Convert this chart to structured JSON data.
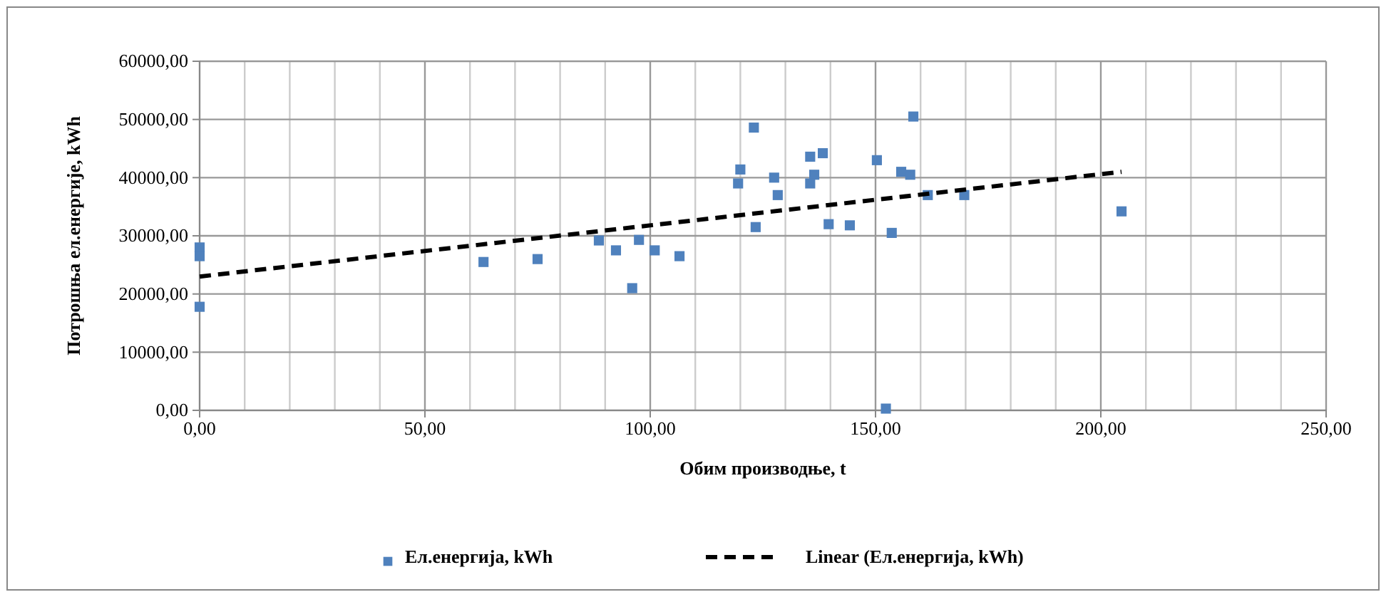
{
  "chart_data": {
    "type": "scatter",
    "xlabel": "Обим производње, t",
    "ylabel": "Потрошња ел.енергије, kWh",
    "xlim": [
      0,
      250
    ],
    "ylim": [
      0,
      60000
    ],
    "xticks": [
      {
        "value": 0,
        "label": "0,00"
      },
      {
        "value": 10,
        "label": null
      },
      {
        "value": 20,
        "label": null
      },
      {
        "value": 30,
        "label": null
      },
      {
        "value": 40,
        "label": null
      },
      {
        "value": 50,
        "label": "50,00"
      },
      {
        "value": 60,
        "label": null
      },
      {
        "value": 70,
        "label": null
      },
      {
        "value": 80,
        "label": null
      },
      {
        "value": 90,
        "label": null
      },
      {
        "value": 100,
        "label": "100,00"
      },
      {
        "value": 110,
        "label": null
      },
      {
        "value": 120,
        "label": null
      },
      {
        "value": 130,
        "label": null
      },
      {
        "value": 140,
        "label": null
      },
      {
        "value": 150,
        "label": "150,00"
      },
      {
        "value": 160,
        "label": null
      },
      {
        "value": 170,
        "label": null
      },
      {
        "value": 180,
        "label": null
      },
      {
        "value": 190,
        "label": null
      },
      {
        "value": 200,
        "label": "200,00"
      },
      {
        "value": 210,
        "label": null
      },
      {
        "value": 220,
        "label": null
      },
      {
        "value": 230,
        "label": null
      },
      {
        "value": 240,
        "label": null
      },
      {
        "value": 250,
        "label": "250,00"
      }
    ],
    "yticks": [
      {
        "value": 0,
        "label": "0,00"
      },
      {
        "value": 10000,
        "label": "10000,00"
      },
      {
        "value": 20000,
        "label": "20000,00"
      },
      {
        "value": 30000,
        "label": "30000,00"
      },
      {
        "value": 40000,
        "label": "40000,00"
      },
      {
        "value": 50000,
        "label": "50000,00"
      },
      {
        "value": 60000,
        "label": "60000,00"
      }
    ],
    "grid": true,
    "legend": "bottom",
    "series": [
      {
        "name": "Ел.енергија, kWh",
        "marker": "square",
        "color": "#4f81bd",
        "x": [
          0,
          0,
          0,
          63,
          75,
          88.6,
          92.4,
          97.5,
          96,
          101,
          106.5,
          123,
          120,
          119.5,
          127.5,
          128.3,
          123.4,
          135.5,
          138.3,
          136.4,
          135.5,
          139.6,
          144.3,
          150.3,
          153.6,
          152.3,
          158.4,
          155.7,
          157.7,
          161.6,
          169.7,
          204.6
        ],
        "values": [
          28000,
          26500,
          17800,
          25500,
          26000,
          29200,
          27500,
          29300,
          21000,
          27500,
          26500,
          48600,
          41400,
          39000,
          40000,
          37000,
          31500,
          43600,
          44200,
          40500,
          39000,
          32000,
          31800,
          43000,
          30500,
          300,
          50500,
          41000,
          40500,
          37000,
          37000,
          34200
        ]
      },
      {
        "name": "Linear (Ел.енергија, kWh)",
        "type": "line",
        "line_style": "dashed",
        "marker": "none",
        "color": "#000000",
        "x": [
          0,
          204.6
        ],
        "values": [
          23000,
          41000
        ]
      }
    ]
  }
}
